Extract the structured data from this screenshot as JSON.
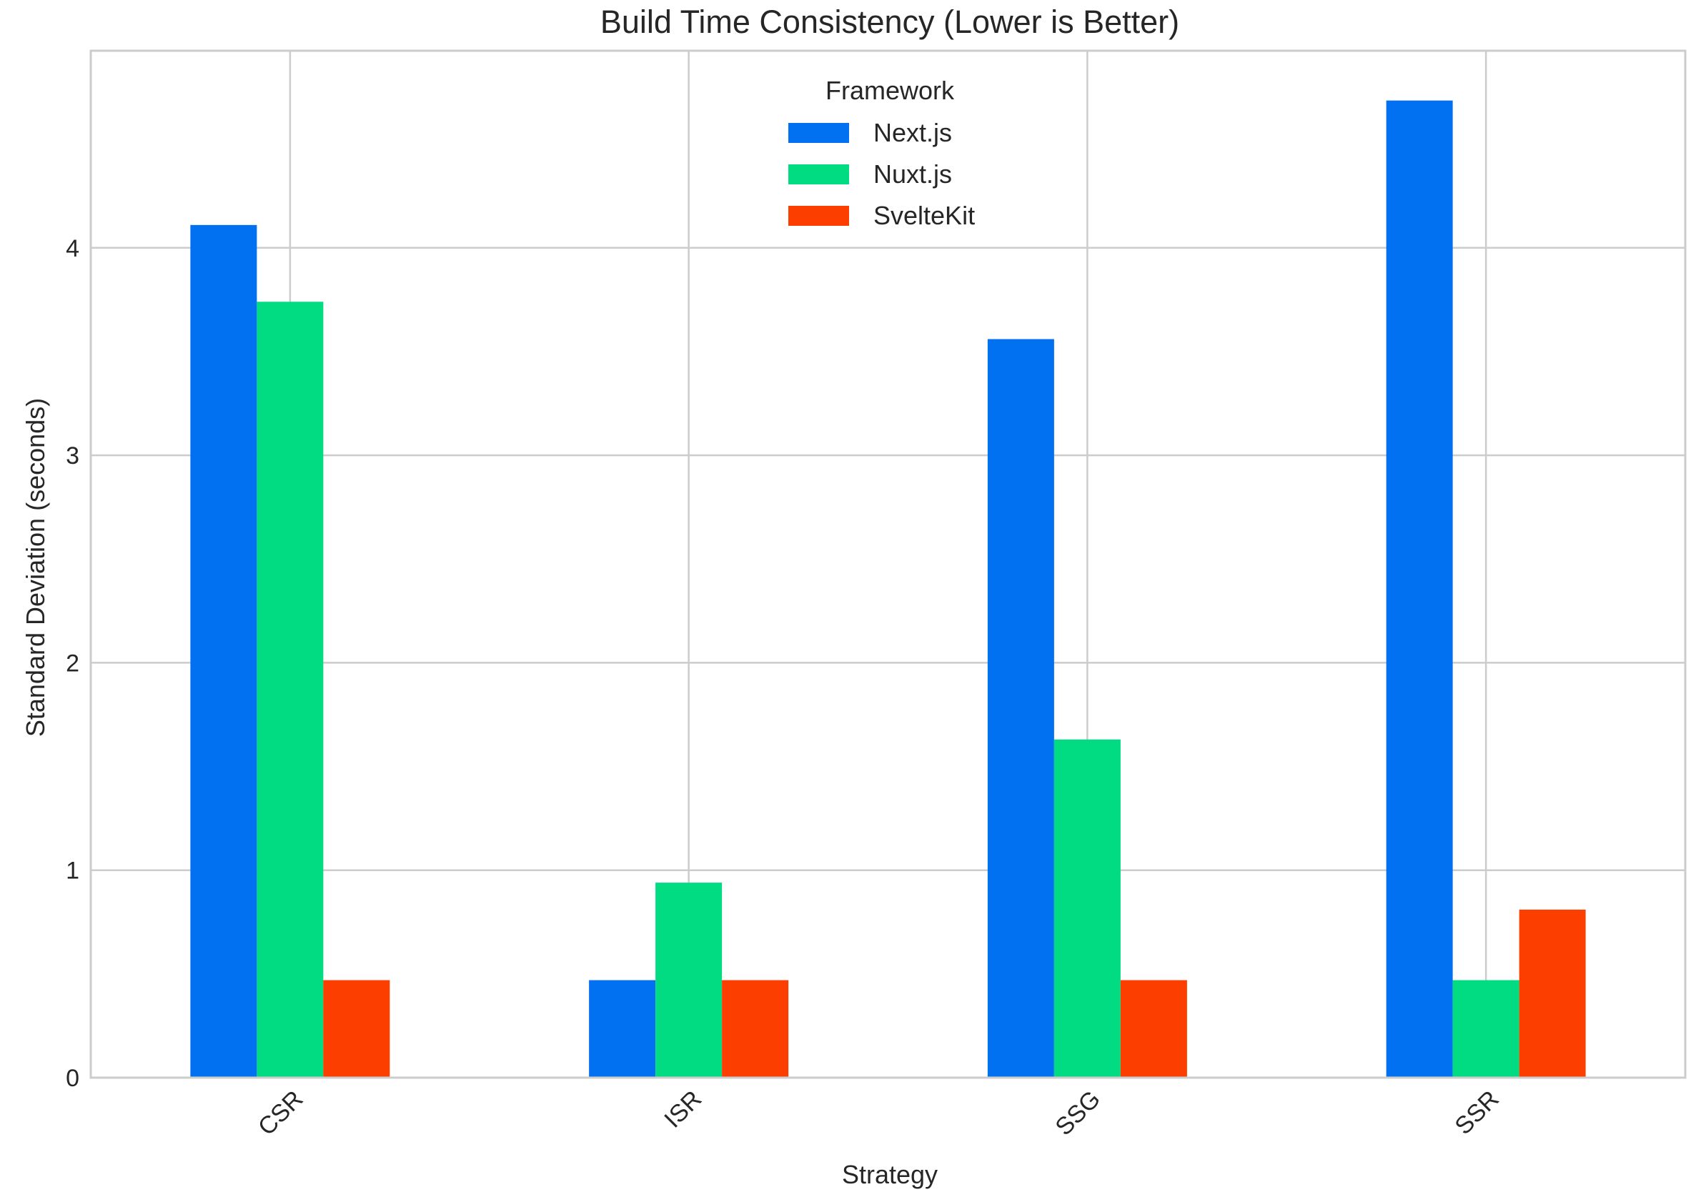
{
  "chart_data": {
    "type": "bar",
    "title": "Build Time Consistency (Lower is Better)",
    "xlabel": "Strategy",
    "ylabel": "Standard Deviation (seconds)",
    "categories": [
      "CSR",
      "ISR",
      "SSG",
      "SSR"
    ],
    "series": [
      {
        "name": "Next.js",
        "color": "#0271f1",
        "values": [
          4.11,
          0.47,
          3.56,
          4.71
        ]
      },
      {
        "name": "Nuxt.js",
        "color": "#01dc82",
        "values": [
          3.74,
          0.94,
          1.63,
          0.47
        ]
      },
      {
        "name": "SvelteKit",
        "color": "#fd3e01",
        "values": [
          0.47,
          0.47,
          0.47,
          0.81
        ]
      }
    ],
    "yticks": [
      0,
      1,
      2,
      3,
      4
    ],
    "ylim": [
      0,
      4.95
    ],
    "grid": true,
    "legend": {
      "title": "Framework",
      "placement": "top-center"
    }
  }
}
